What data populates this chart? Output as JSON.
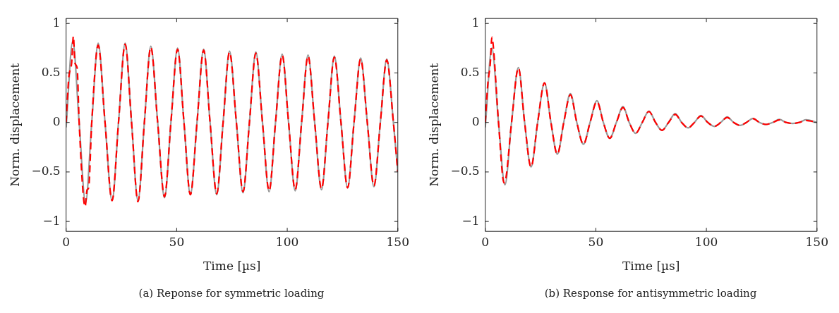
{
  "chart_data": [
    {
      "type": "line",
      "xlabel": "Time [µs]",
      "ylabel": "Norm. displacement",
      "annotations": [
        "(a)  Reponse for symmetric loading"
      ],
      "xlim": [
        0,
        150
      ],
      "ylim": [
        -1.1,
        1.05
      ],
      "xticks": [
        0,
        50,
        100,
        150
      ],
      "yticks": [
        -1,
        -0.5,
        0,
        0.5,
        1
      ],
      "legend": false,
      "marker": "none",
      "series": [
        {
          "color": "#999999",
          "line_style": "solid",
          "x": [
            0,
            3,
            5.9,
            8.8,
            11.6,
            14.5,
            17.6,
            20.8,
            23.7,
            26.7,
            29.6,
            32.5,
            35.4,
            38.3,
            41.4,
            44.5,
            47.4,
            50.4,
            53.3,
            56.2,
            59.2,
            62.2,
            65.1,
            68.1,
            71,
            73.9,
            77,
            80,
            82.9,
            85.8,
            88.8,
            91.8,
            94.7,
            97.7,
            100.6,
            103.6,
            106.5,
            109.4,
            112.4,
            115.5,
            118.4,
            121.3,
            124.3,
            127.3,
            130.2,
            133.2,
            136.2,
            139.2,
            142.1,
            145,
            148,
            150
          ],
          "values": [
            -0.05,
            0.82,
            0,
            -0.81,
            0,
            0.8,
            0,
            -0.79,
            0,
            0.8,
            0,
            -0.79,
            0,
            0.77,
            0,
            -0.76,
            0,
            0.75,
            0,
            -0.73,
            0,
            0.74,
            0,
            -0.73,
            0,
            0.72,
            0,
            -0.71,
            0,
            0.71,
            0,
            -0.7,
            0,
            0.69,
            0,
            -0.69,
            0,
            0.68,
            0,
            -0.68,
            0,
            0.67,
            0,
            -0.66,
            0,
            0.65,
            0,
            -0.65,
            0,
            0.64,
            0,
            -0.5
          ]
        },
        {
          "color": "#ff0000",
          "line_style": "dashed",
          "x": [
            0,
            1.2,
            2.5,
            3.3,
            4,
            5,
            5.9,
            8.6,
            9.5,
            10.2,
            11.6,
            14.5,
            17.6,
            20.8,
            23.7,
            26.7,
            29.6,
            32.5,
            35.4,
            38.3,
            41.4,
            44.5,
            47.4,
            50.4,
            53.3,
            56.2,
            59.2,
            62.2,
            65.1,
            68.1,
            71,
            73.9,
            77,
            80,
            82.9,
            85.8,
            88.8,
            91.8,
            94.7,
            97.7,
            100.6,
            103.6,
            106.5,
            109.4,
            112.4,
            115.5,
            118.4,
            121.3,
            124.3,
            127.3,
            130.2,
            133.2,
            136.2,
            139.2,
            142.1,
            145,
            148,
            150
          ],
          "values": [
            0,
            0.45,
            0.6,
            0.87,
            0.6,
            0.55,
            0,
            -0.85,
            -0.68,
            -0.66,
            0,
            0.78,
            0,
            -0.79,
            0,
            0.79,
            0,
            -0.8,
            0,
            0.76,
            0,
            -0.75,
            0,
            0.74,
            0,
            -0.73,
            0,
            0.73,
            0,
            -0.72,
            0,
            0.71,
            0,
            -0.7,
            0,
            0.7,
            0,
            -0.69,
            0,
            0.68,
            0,
            -0.68,
            0,
            0.67,
            0,
            -0.67,
            0,
            0.66,
            0,
            -0.66,
            0,
            0.64,
            0,
            -0.64,
            0,
            0.63,
            0,
            -0.5
          ]
        }
      ]
    },
    {
      "type": "line",
      "xlabel": "Time [µs]",
      "ylabel": "Norm. displacement",
      "annotations": [
        "(b)  Response for antisymmetric loading"
      ],
      "xlim": [
        0,
        150
      ],
      "ylim": [
        -1.1,
        1.05
      ],
      "xticks": [
        0,
        50,
        100,
        150
      ],
      "yticks": [
        -1,
        -0.5,
        0,
        0.5,
        1
      ],
      "legend": false,
      "marker": "none",
      "series": [
        {
          "color": "#999999",
          "line_style": "solid",
          "x": [
            0,
            3,
            6,
            8.9,
            11.9,
            15,
            17.8,
            20.7,
            23.7,
            26.8,
            29.7,
            32.6,
            35.5,
            38.5,
            41.4,
            44.4,
            47.4,
            50.5,
            53.4,
            56.3,
            59.3,
            62.3,
            65.1,
            68,
            71,
            74,
            77,
            79.9,
            82.9,
            85.9,
            88.8,
            91.7,
            94.6,
            97.5,
            100.6,
            103.6,
            106.5,
            109.4,
            112.3,
            115.3,
            118.1,
            121,
            124,
            127,
            130,
            133,
            136,
            139,
            142,
            145,
            150
          ],
          "values": [
            -0.05,
            0.75,
            0,
            -0.63,
            0,
            0.555,
            0,
            -0.45,
            0,
            0.4,
            0,
            -0.32,
            0,
            0.29,
            0,
            -0.22,
            0,
            0.22,
            0,
            -0.16,
            0,
            0.16,
            0,
            -0.11,
            0,
            0.115,
            0,
            -0.08,
            0,
            0.09,
            0,
            -0.055,
            0,
            0.07,
            0,
            -0.04,
            0,
            0.055,
            0,
            -0.03,
            0,
            0.04,
            0,
            -0.02,
            0,
            0.03,
            0,
            -0.01,
            0,
            0.027,
            0
          ]
        },
        {
          "color": "#ff0000",
          "line_style": "dashed",
          "x": [
            0,
            1.2,
            2.3,
            3,
            3.6,
            6,
            8.5,
            9.3,
            11.9,
            15,
            17.8,
            20.7,
            23.7,
            26.8,
            29.7,
            32.6,
            35.5,
            38.5,
            41.4,
            44.4,
            47.4,
            50.5,
            53.4,
            56.3,
            59.3,
            62.3,
            65.1,
            68,
            71,
            74,
            77,
            79.9,
            82.9,
            85.9,
            88.8,
            91.7,
            94.6,
            97.5,
            100.6,
            103.6,
            106.5,
            109.4,
            112.3,
            115.3,
            118.1,
            121,
            124,
            127,
            130,
            133,
            136,
            139,
            142,
            145,
            150
          ],
          "values": [
            0,
            0.4,
            0.6,
            0.86,
            0.78,
            0,
            -0.61,
            -0.57,
            0,
            0.55,
            0,
            -0.45,
            0,
            0.4,
            0,
            -0.32,
            0,
            0.28,
            0,
            -0.22,
            0,
            0.21,
            0,
            -0.16,
            0,
            0.15,
            0,
            -0.11,
            0,
            0.11,
            0,
            -0.08,
            0,
            0.08,
            0,
            -0.055,
            0,
            0.065,
            0,
            -0.04,
            0,
            0.05,
            0,
            -0.03,
            0,
            0.04,
            0,
            -0.02,
            0,
            0.025,
            0,
            -0.01,
            0,
            0.02,
            0
          ]
        }
      ]
    }
  ]
}
